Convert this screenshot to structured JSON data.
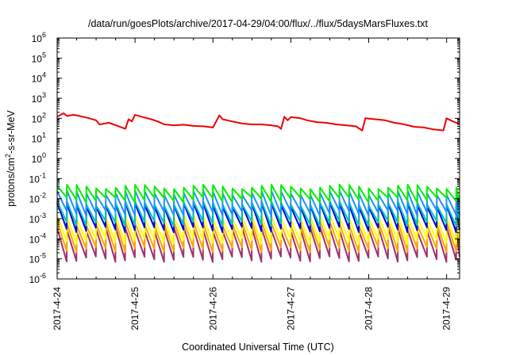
{
  "chart_data": {
    "type": "line",
    "title": "/data/run/goesPlots/archive/2017-04-29/04:00/flux/../flux/5daysMarsFluxes.txt",
    "xlabel": "Coordinated Universal Time (UTC)",
    "ylabel": {
      "base": "protons/cm",
      "sup": "2",
      "rest": "-s-sr-MeV"
    },
    "y_scale": "log",
    "ylim": [
      1e-06,
      1000000.0
    ],
    "y_ticks": [
      {
        "value": 1e-06,
        "base": "10",
        "exp": "-6"
      },
      {
        "value": 1e-05,
        "base": "10",
        "exp": "-5"
      },
      {
        "value": 0.0001,
        "base": "10",
        "exp": "-4"
      },
      {
        "value": 0.001,
        "base": "10",
        "exp": "-3"
      },
      {
        "value": 0.01,
        "base": "10",
        "exp": "-2"
      },
      {
        "value": 0.1,
        "base": "10",
        "exp": "-1"
      },
      {
        "value": 1,
        "base": "10",
        "exp": "0"
      },
      {
        "value": 10,
        "base": "10",
        "exp": "1"
      },
      {
        "value": 100,
        "base": "10",
        "exp": "2"
      },
      {
        "value": 1000,
        "base": "10",
        "exp": "3"
      },
      {
        "value": 10000,
        "base": "10",
        "exp": "4"
      },
      {
        "value": 100000,
        "base": "10",
        "exp": "5"
      },
      {
        "value": 1000000,
        "base": "10",
        "exp": "6"
      }
    ],
    "xlim": [
      "2017-04-24",
      "2017-04-29 04:00"
    ],
    "x_tick_labels": [
      "2017-4-24",
      "2017-4-25",
      "2017-4-26",
      "2017-4-27",
      "2017-4-28",
      "2017-4-29"
    ],
    "grid": false,
    "legend": "none",
    "series": [
      {
        "color": "#ee0000",
        "x": [
          "2017-04-24 00:00",
          "2017-04-24 02:00",
          "2017-04-24 03:00",
          "2017-04-24 05:00",
          "2017-04-24 06:00",
          "2017-04-24 09:00",
          "2017-04-24 12:00",
          "2017-04-24 13:00",
          "2017-04-24 16:00",
          "2017-04-24 19:00",
          "2017-04-24 21:00",
          "2017-04-24 22:00",
          "2017-04-24 23:00",
          "2017-04-25 00:00",
          "2017-04-25 02:00",
          "2017-04-25 05:00",
          "2017-04-25 07:00",
          "2017-04-25 09:00",
          "2017-04-25 12:00",
          "2017-04-25 15:00",
          "2017-04-25 18:00",
          "2017-04-25 21:00",
          "2017-04-26 00:00",
          "2017-04-26 02:00",
          "2017-04-26 03:00",
          "2017-04-26 06:00",
          "2017-04-26 09:00",
          "2017-04-26 12:00",
          "2017-04-26 15:00",
          "2017-04-26 18:00",
          "2017-04-26 20:00",
          "2017-04-26 21:00",
          "2017-04-26 22:00",
          "2017-04-26 23:00",
          "2017-04-27 00:00",
          "2017-04-27 03:00",
          "2017-04-27 05:00",
          "2017-04-27 08:00",
          "2017-04-27 11:00",
          "2017-04-27 14:00",
          "2017-04-27 17:00",
          "2017-04-27 20:00",
          "2017-04-27 22:00",
          "2017-04-27 23:00",
          "2017-04-28 02:00",
          "2017-04-28 05:00",
          "2017-04-28 08:00",
          "2017-04-28 11:00",
          "2017-04-28 14:00",
          "2017-04-28 17:00",
          "2017-04-28 20:00",
          "2017-04-28 23:00",
          "2017-04-29 00:00",
          "2017-04-29 02:00",
          "2017-04-29 03:00",
          "2017-04-29 04:00"
        ],
        "y": [
          120,
          180,
          130,
          150,
          140,
          110,
          80,
          50,
          60,
          40,
          30,
          90,
          70,
          150,
          120,
          90,
          70,
          50,
          45,
          48,
          42,
          40,
          35,
          140,
          90,
          70,
          55,
          50,
          50,
          45,
          40,
          30,
          120,
          80,
          115,
          100,
          80,
          65,
          60,
          50,
          45,
          40,
          25,
          100,
          90,
          80,
          60,
          50,
          38,
          35,
          28,
          25,
          100,
          70,
          60,
          55
        ]
      },
      {
        "color": "#00ee00",
        "pattern": {
          "period_hours": 3,
          "high": 0.04,
          "low": 0.009
        }
      },
      {
        "color": "#1e90ff",
        "pattern": {
          "period_hours": 3,
          "high": 0.02,
          "low": 0.002
        }
      },
      {
        "color": "#00c0c0",
        "pattern": {
          "period_hours": 3,
          "high": 0.006,
          "low": 0.0006
        }
      },
      {
        "color": "#0000dd",
        "pattern": {
          "period_hours": 3,
          "high": 0.005,
          "low": 0.0003
        }
      },
      {
        "color": "#ffff00",
        "pattern": {
          "period_hours": 3,
          "high": 0.0012,
          "low": 8e-05
        }
      },
      {
        "color": "#ffa500",
        "pattern": {
          "period_hours": 3,
          "high": 0.0006,
          "low": 3e-05
        }
      },
      {
        "color": "#a0306e",
        "pattern": {
          "period_hours": 3,
          "high": 0.0003,
          "low": 1e-05
        }
      }
    ]
  }
}
